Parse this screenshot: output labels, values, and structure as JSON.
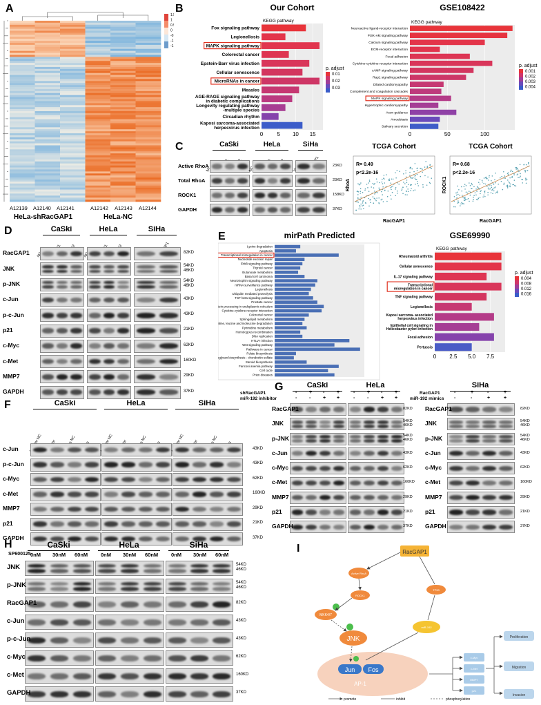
{
  "panels": {
    "A": "A",
    "B": "B",
    "C": "C",
    "D": "D",
    "E": "E",
    "F": "F",
    "G": "G",
    "H": "H",
    "I": "I"
  },
  "panelA": {
    "columns": [
      "A12139",
      "A12140",
      "A12141",
      "A12142",
      "A12143",
      "A12144"
    ],
    "groups": [
      "HeLa-shRacGAP1",
      "HeLa-NC"
    ],
    "scale_ticks": [
      "1.5",
      "1",
      "0.5",
      "0",
      "-0.5",
      "-1",
      "-1.5"
    ]
  },
  "panelB": {
    "left_title": "Our Cohort",
    "right_title": "GSE108422",
    "subtitle": "KEGG pathway",
    "legend_title": "p. adjust",
    "left_legend": [
      "0.01",
      "0.02",
      "0.03"
    ],
    "right_legend": [
      "0.001",
      "0.002",
      "0.003",
      "0.004"
    ]
  },
  "panelC": {
    "cells": [
      "CaSki",
      "HeLa",
      "SiHa"
    ],
    "lanes": [
      "NC",
      "shRNA1",
      "shRNA2",
      "NC",
      "shRNA1",
      "shRNA2",
      "Vector",
      "RacGAP1"
    ],
    "rows": [
      {
        "label": "Active RhoA",
        "kd": "23KD"
      },
      {
        "label": "Total RhoA",
        "kd": "23KD"
      },
      {
        "label": "ROCK1",
        "kd": "158KD"
      },
      {
        "label": "GAPDH",
        "kd": "37KD"
      }
    ],
    "scatter": [
      {
        "title": "TCGA Cohort",
        "r": "R= 0.49",
        "p": "p<2.2e-16",
        "xlabel": "RacGAP1",
        "ylabel": "RhoA"
      },
      {
        "title": "TCGA Cohort",
        "r": "R= 0.68",
        "p": "p<2.2e-16",
        "xlabel": "RacGAP1",
        "ylabel": "ROCK1"
      }
    ]
  },
  "panelD": {
    "cells": [
      "CaSki",
      "HeLa",
      "SiHa"
    ],
    "lanes": [
      "NC",
      "shRNA1",
      "shRNA2",
      "NC",
      "shRNA1",
      "shRNA2",
      "Vector",
      "RacGAP1"
    ],
    "rows": [
      {
        "label": "RacGAP1",
        "kd": "82KD"
      },
      {
        "label": "JNK",
        "kd": "54KD\n46KD"
      },
      {
        "label": "p-JNK",
        "kd": "54KD\n46KD"
      },
      {
        "label": "c-Jun",
        "kd": "43KD"
      },
      {
        "label": "p-c-Jun",
        "kd": "43KD"
      },
      {
        "label": "p21",
        "kd": "21KD"
      },
      {
        "label": "c-Myc",
        "kd": "62KD"
      },
      {
        "label": "c-Met",
        "kd": "160KD"
      },
      {
        "label": "MMP7",
        "kd": "29KD"
      },
      {
        "label": "GAPDH",
        "kd": "37KD"
      }
    ]
  },
  "panelE": {
    "left_title": "mirPath Predicted",
    "right_title": "GSE69990",
    "subtitle": "KEGG pathway",
    "legend_title": "p. adjust",
    "legend": [
      "0.004",
      "0.008",
      "0.012",
      "0.016"
    ]
  },
  "panelF": {
    "cells": [
      "CaSki",
      "HeLa",
      "SiHa"
    ],
    "lanes": [
      "Inhibitor NC",
      "Inhibitor",
      "mimics NC",
      "mimics"
    ],
    "rows": [
      {
        "label": "c-Jun",
        "kd": "43KD"
      },
      {
        "label": "p-c-Jun",
        "kd": "43KD"
      },
      {
        "label": "c-Myc",
        "kd": "62KD"
      },
      {
        "label": "c-Met",
        "kd": "160KD"
      },
      {
        "label": "MMP7",
        "kd": "29KD"
      },
      {
        "label": "p21",
        "kd": "21KD"
      },
      {
        "label": "GAPDH",
        "kd": "37KD"
      }
    ]
  },
  "panelG": {
    "cells": [
      "CaSki",
      "HeLa",
      "SiHa"
    ],
    "treat_left": [
      "shRacGAP1",
      "miR-192 inhibitor"
    ],
    "treat_right": [
      "RacGAP1",
      "miR-192 mimics"
    ],
    "signs_row1": [
      "-",
      "+",
      "-",
      "+"
    ],
    "signs_row2": [
      "-",
      "-",
      "+",
      "+"
    ],
    "rows": [
      {
        "label": "RacGAP1",
        "kd": "82KD"
      },
      {
        "label": "JNK",
        "kd": "54KD\n46KD"
      },
      {
        "label": "p-JNK",
        "kd": "54KD\n46KD"
      },
      {
        "label": "c-Jun",
        "kd": "43KD"
      },
      {
        "label": "c-Myc",
        "kd": "62KD"
      },
      {
        "label": "c-Met",
        "kd": "160KD"
      },
      {
        "label": "MMP7",
        "kd": "29KD"
      },
      {
        "label": "p21",
        "kd": "21KD"
      },
      {
        "label": "GAPDH",
        "kd": "37KD"
      }
    ]
  },
  "panelH": {
    "cells": [
      "CaSki",
      "HeLa",
      "SiHa"
    ],
    "treat": "SP600125",
    "doses": [
      "0nM",
      "30nM",
      "60nM"
    ],
    "rows": [
      {
        "label": "JNK",
        "kd": "54KD\n46KD"
      },
      {
        "label": "p-JNK",
        "kd": "54KD\n46KD"
      },
      {
        "label": "RacGAP1",
        "kd": "82KD"
      },
      {
        "label": "c-Jun",
        "kd": "43KD"
      },
      {
        "label": "p-c-Jun",
        "kd": "43KD"
      },
      {
        "label": "c-Myc",
        "kd": "62KD"
      },
      {
        "label": "c-Met",
        "kd": "160KD"
      },
      {
        "label": "GAPDH",
        "kd": "37KD"
      }
    ]
  },
  "panelI": {
    "nodes": [
      "RacGAP1",
      "Active RhoA",
      "ROCK1",
      "TP53",
      "MKK4/7",
      "JNK",
      "Jun",
      "Fos",
      "AP-1",
      "miR-192",
      "c-Myc",
      "c-Met",
      "MMP7",
      "p21"
    ],
    "outcomes": [
      "Proliferation",
      "Migration",
      "Invasion"
    ],
    "legend": [
      "promote",
      "inhibit",
      "phosphorylation"
    ]
  },
  "chart_data": [
    {
      "type": "bar",
      "title": "Our Cohort",
      "subtitle": "KEGG pathway",
      "xticks": [
        "0",
        "5",
        "10",
        "15"
      ],
      "categories": [
        "Fox signaling pathway",
        "Legionellosis",
        "MAPK signaling pathway",
        "Colorectal cancer",
        "Epstein-Barr virus infection",
        "Cellular senescence",
        "MicroRNAs in cancer",
        "Measles",
        "AGE-RAGE signaling pathway in diabetic complications",
        "Longevity regulating pathway -multiple species",
        "Circadian rhythm",
        "Kaposi sarcoma-associated herpesvirus infection"
      ],
      "values": [
        13,
        7,
        17,
        8,
        14,
        12,
        17,
        11,
        9,
        7,
        5,
        12
      ],
      "colors": [
        "#e8343a",
        "#e3354a",
        "#e1354e",
        "#de3552",
        "#d9365a",
        "#d3365f",
        "#ce3766",
        "#c63872",
        "#bb3a80",
        "#a73e93",
        "#8543ac",
        "#3b5cc9"
      ]
    },
    {
      "type": "bar",
      "title": "GSE108422",
      "subtitle": "KEGG pathway",
      "xticks": [
        "0",
        "50",
        "100"
      ],
      "categories": [
        "Neuroactive ligand-receptor interaction",
        "PI3K-Akt signaling pathway",
        "Calcium signaling pathway",
        "ECM-receptor interaction",
        "Focal adhesion",
        "Cytokine-cytokine receptor interaction",
        "cAMP signaling pathway",
        "Rap1 signaling pathway",
        "Dilated cardiomyopathy",
        "Complement and coagulation cascades",
        "MAPK signaling pathway",
        "Hypertrophic cardiomyopathy",
        "Axon guidance",
        "Amoebiasis",
        "Salivary secretion"
      ],
      "values": [
        137,
        130,
        100,
        40,
        80,
        110,
        85,
        75,
        45,
        42,
        55,
        38,
        62,
        40,
        38
      ],
      "colors": [
        "#e8343a",
        "#e63440",
        "#e3354a",
        "#e1354e",
        "#dd3554",
        "#d9365a",
        "#d3365f",
        "#cd3767",
        "#c63872",
        "#be3a7c",
        "#b43b88",
        "#a53e95",
        "#8f41a6",
        "#6a4bbb",
        "#3e5cc8"
      ]
    },
    {
      "type": "bar",
      "title": "mirPath Predicted",
      "xticks": [],
      "categories": [
        "Lysine degradation",
        "Apoptosis",
        "Transcriptional misregulation in cancer",
        "Nucleotide excision repair",
        "ErbB signaling pathway",
        "Thyroid cancer",
        "Butanoate metabolism",
        "Basal cell carcinoma",
        "Neurotrophin signaling pathway",
        "mRNA surveillance pathway",
        "Legionellosis",
        "Ubiquitin mediated proteolysis",
        "TGF-beta signaling pathway",
        "Prostate cancer",
        "Protein processing in endoplasmic reticulum",
        "Cytokine-cytokine receptor interaction",
        "Colorectal cancer",
        "Sphingolipid metabolism",
        "Valine, leucine and isoleucine degradation",
        "Pyrimidine metabolism",
        "Homologous recombination",
        "DNA replication",
        "HTLV-I infection",
        "Wnt signaling pathway",
        "Pathways in cancer",
        "Folate biosynthesis",
        "Glycosaminoglycan biosynthesis - chondroitin sulfate",
        "Steroid biosynthesis",
        "Fanconi anemia pathway",
        "Cell cycle",
        "Prion diseases"
      ],
      "values": [
        12,
        10,
        30,
        14,
        13,
        12,
        11,
        14,
        20,
        19,
        17,
        16,
        18,
        20,
        23,
        22,
        16,
        14,
        13,
        15,
        12,
        13,
        35,
        28,
        40,
        10,
        9,
        15,
        30,
        25,
        28
      ],
      "colors": [
        "#4a6fb5"
      ]
    },
    {
      "type": "bar",
      "title": "GSE69990",
      "subtitle": "KEGG pathway",
      "xticks": [
        "0",
        "2.5",
        "5.0",
        "7.5"
      ],
      "categories": [
        "Rheumatoid arthritis",
        "Cellular senescence",
        "IL-17 signaling pathway",
        "Transcriptional misregulation in cancer",
        "TNF signaling pathway",
        "Legionellosis",
        "Kaposi sarcoma- associated herpesvirus infection",
        "Epithelial cell signaling in Helicobacter pylori infection",
        "Focal adhesion",
        "Pertussis"
      ],
      "values": [
        9,
        9,
        7,
        9,
        7,
        5,
        8,
        6,
        8,
        5
      ],
      "colors": [
        "#e8343a",
        "#e3354a",
        "#de3552",
        "#d9365a",
        "#d3365f",
        "#c63872",
        "#b43b88",
        "#a53e95",
        "#8543ac",
        "#4a5cc6"
      ]
    },
    {
      "type": "scatter",
      "title": "TCGA Cohort",
      "xlabel": "RacGAP1",
      "ylabel": "RhoA",
      "annotations": [
        "R= 0.49",
        "p<2.2e-16"
      ],
      "trend": "positive"
    },
    {
      "type": "scatter",
      "title": "TCGA Cohort",
      "xlabel": "RacGAP1",
      "ylabel": "ROCK1",
      "annotations": [
        "R= 0.68",
        "p<2.2e-16"
      ],
      "trend": "positive"
    }
  ]
}
